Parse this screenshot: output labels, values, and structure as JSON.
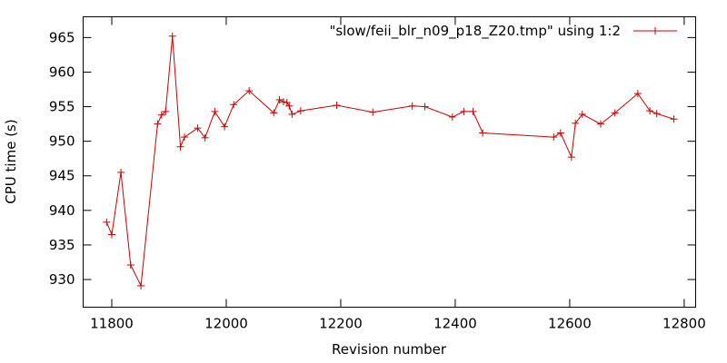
{
  "chart_data": {
    "type": "line",
    "title": "",
    "xlabel": "Revision number",
    "ylabel": "CPU time (s)",
    "xlim": [
      11750,
      12820
    ],
    "ylim": [
      926,
      968
    ],
    "xticks": [
      11800,
      12000,
      12200,
      12400,
      12600,
      12800
    ],
    "yticks": [
      930,
      935,
      940,
      945,
      950,
      955,
      960,
      965
    ],
    "grid": false,
    "legend_position": "top-right",
    "colors": {
      "series": "#cc0000",
      "axes": "#000000"
    },
    "series": [
      {
        "name": "\"slow/feii_blr_n09_p18_Z20.tmp\" using 1:2",
        "marker": "plus",
        "x": [
          11791,
          11800,
          11816,
          11833,
          11851,
          11880,
          11887,
          11894,
          11906,
          11920,
          11927,
          11950,
          11963,
          11980,
          11997,
          12013,
          12040,
          12083,
          12093,
          12100,
          12106,
          12110,
          12115,
          12130,
          12193,
          12256,
          12325,
          12347,
          12395,
          12415,
          12431,
          12448,
          12572,
          12584,
          12603,
          12610,
          12622,
          12654,
          12679,
          12719,
          12740,
          12752,
          12782
        ],
        "y": [
          938.3,
          936.5,
          945.5,
          932.1,
          929.1,
          952.5,
          953.8,
          954.3,
          965.2,
          949.2,
          950.6,
          951.9,
          950.5,
          954.3,
          952.1,
          955.3,
          957.3,
          954.1,
          956.0,
          955.7,
          955.6,
          955.1,
          953.9,
          954.4,
          955.2,
          954.2,
          955.1,
          955.0,
          953.5,
          954.3,
          954.3,
          951.2,
          950.6,
          951.2,
          947.7,
          952.6,
          953.9,
          952.5,
          954.1,
          956.9,
          954.4,
          954.0,
          953.2
        ]
      }
    ]
  }
}
